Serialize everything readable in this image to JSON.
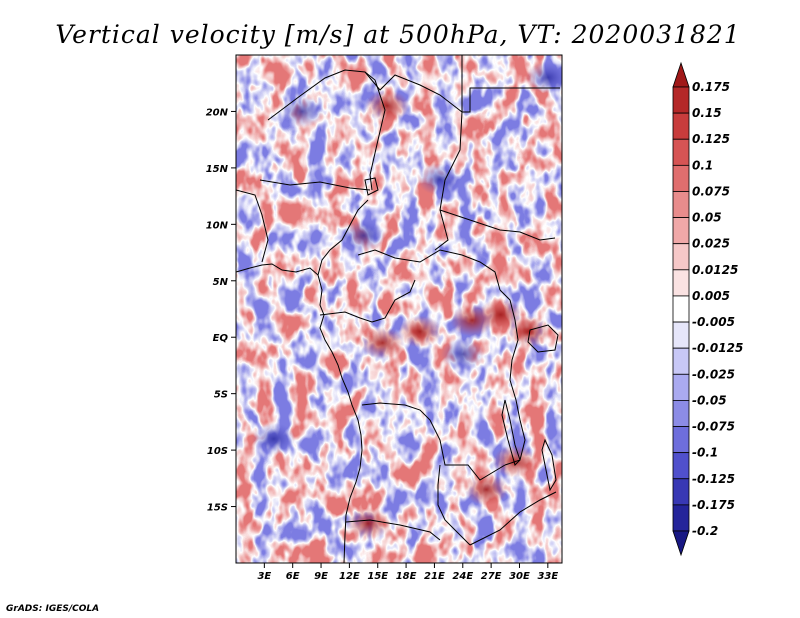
{
  "chart_data": {
    "type": "heatmap",
    "title": "Vertical velocity [m/s] at 500hPa, VT: 2020031821",
    "variable": "Vertical velocity",
    "units": "m/s",
    "level": "500hPa",
    "valid_time": "2020031821",
    "lon_range": [
      0,
      34.5
    ],
    "lat_range": [
      -20,
      25
    ],
    "x_ticks": [
      {
        "value": 3,
        "label": "3E"
      },
      {
        "value": 6,
        "label": "6E"
      },
      {
        "value": 9,
        "label": "9E"
      },
      {
        "value": 12,
        "label": "12E"
      },
      {
        "value": 15,
        "label": "15E"
      },
      {
        "value": 18,
        "label": "18E"
      },
      {
        "value": 21,
        "label": "21E"
      },
      {
        "value": 24,
        "label": "24E"
      },
      {
        "value": 27,
        "label": "27E"
      },
      {
        "value": 30,
        "label": "30E"
      },
      {
        "value": 33,
        "label": "33E"
      }
    ],
    "y_ticks": [
      {
        "value": 20,
        "label": "20N"
      },
      {
        "value": 15,
        "label": "15N"
      },
      {
        "value": 10,
        "label": "10N"
      },
      {
        "value": 5,
        "label": "5N"
      },
      {
        "value": 0,
        "label": "EQ"
      },
      {
        "value": -5,
        "label": "5S"
      },
      {
        "value": -10,
        "label": "10S"
      },
      {
        "value": -15,
        "label": "15S"
      }
    ],
    "colorbar": {
      "levels": [
        "0.175",
        "0.15",
        "0.125",
        "0.1",
        "0.075",
        "0.05",
        "0.025",
        "0.0125",
        "0.005",
        "-0.005",
        "-0.0125",
        "-0.025",
        "-0.05",
        "-0.075",
        "-0.1",
        "-0.125",
        "-0.175",
        "-0.2"
      ],
      "colors": [
        "#a01818",
        "#b42828",
        "#c83c3c",
        "#d65454",
        "#e06e6e",
        "#e88c8c",
        "#f0a8a8",
        "#f6c8c8",
        "#fae2e2",
        "#ffffff",
        "#e6e6fa",
        "#c8c8f6",
        "#aaaaf0",
        "#8c8ce6",
        "#6e6edc",
        "#5050cc",
        "#3838b4",
        "#24249a",
        "#181884"
      ]
    },
    "hotspots": [
      {
        "lon": 19.5,
        "lat": 0.5,
        "sign": "up"
      },
      {
        "lon": 25.0,
        "lat": 1.5,
        "sign": "up"
      },
      {
        "lon": 28.0,
        "lat": 2.0,
        "sign": "up"
      },
      {
        "lon": 31.0,
        "lat": 0.5,
        "sign": "up"
      },
      {
        "lon": 15.5,
        "lat": -0.5,
        "sign": "up"
      },
      {
        "lon": 29.5,
        "lat": -11.0,
        "sign": "up"
      },
      {
        "lon": 26.5,
        "lat": -13.5,
        "sign": "up"
      },
      {
        "lon": 14.0,
        "lat": -16.5,
        "sign": "up"
      },
      {
        "lon": 16.0,
        "lat": 20.5,
        "sign": "up"
      },
      {
        "lon": 7.0,
        "lat": 20.0,
        "sign": "down"
      },
      {
        "lon": 13.5,
        "lat": 9.0,
        "sign": "down"
      },
      {
        "lon": 24.0,
        "lat": -1.5,
        "sign": "down"
      },
      {
        "lon": 4.0,
        "lat": -9.0,
        "sign": "down"
      },
      {
        "lon": 21.5,
        "lat": 14.0,
        "sign": "down"
      },
      {
        "lon": 33.0,
        "lat": 23.0,
        "sign": "down"
      }
    ]
  },
  "footer": {
    "credit": "GrADS: IGES/COLA"
  }
}
